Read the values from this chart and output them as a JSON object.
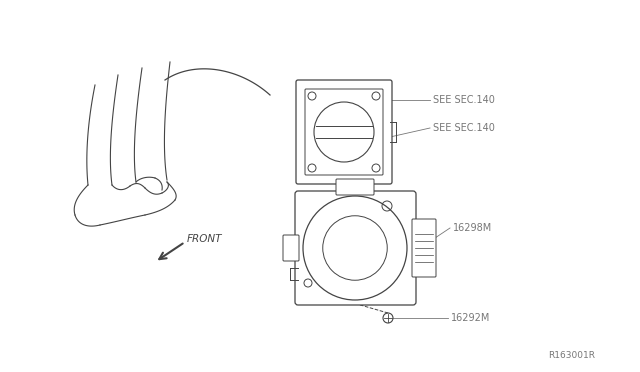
{
  "bg_color": "#ffffff",
  "fig_width": 6.4,
  "fig_height": 3.72,
  "dpi": 100,
  "line_color": "#444444",
  "label_color": "#777777",
  "labels": {
    "see_sec_140_top": "SEE SEC.140",
    "see_sec_140_bot": "SEE SEC.140",
    "part_16298m": "16298M",
    "part_16292m": "16292M",
    "front": "FRONT",
    "ref": "R163001R"
  }
}
